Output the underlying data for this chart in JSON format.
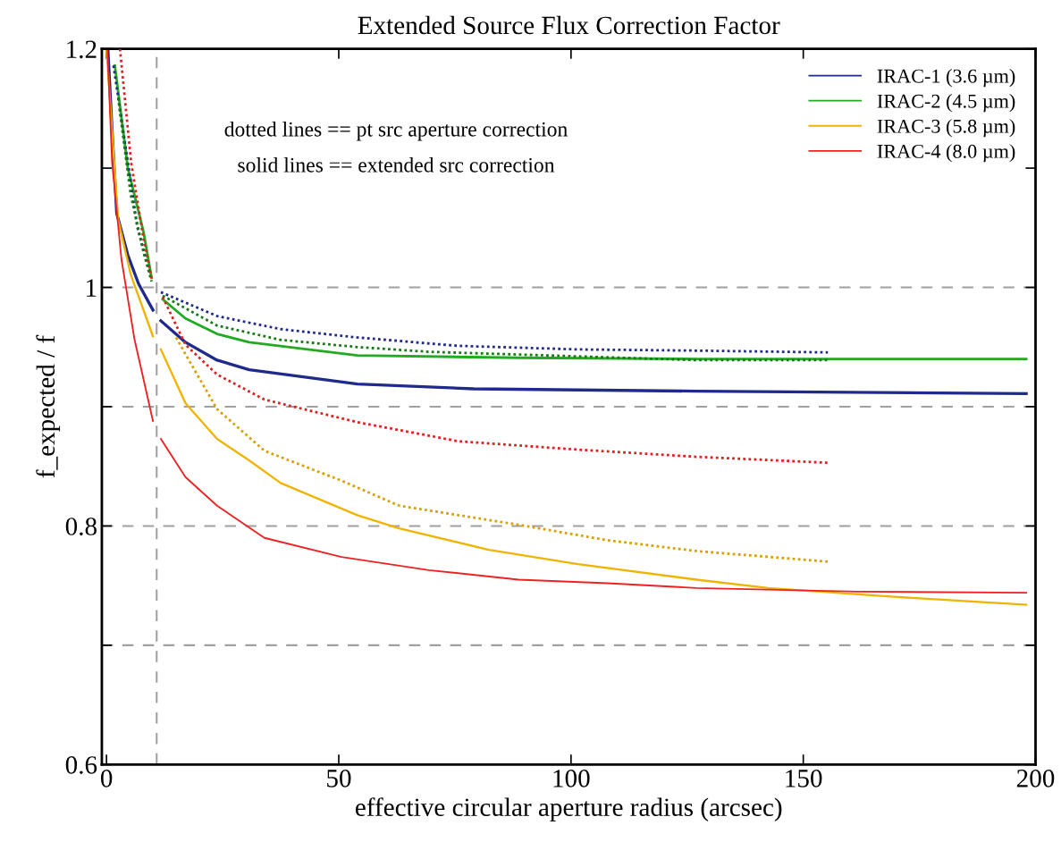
{
  "chart_data": {
    "type": "line",
    "title": "Extended Source Flux Correction Factor",
    "xlabel": "effective circular aperture radius (arcsec)",
    "ylabel": "f_expected / f",
    "annotations": [
      "dotted lines == pt src aperture correction",
      "solid lines == extended src correction"
    ],
    "xlim": [
      -1,
      200
    ],
    "xticks": [
      0,
      50,
      100,
      150,
      200
    ],
    "ylim": [
      0.6,
      1.2
    ],
    "yticks": [
      0.6,
      {
        "value": 0.7,
        "label": null
      },
      0.8,
      {
        "value": 0.9,
        "label": null
      },
      1,
      {
        "value": 1.1,
        "label": null
      },
      1.2
    ],
    "legend": "top right",
    "grid": false,
    "marker": "none",
    "ref_lines": [
      {
        "axis": "y",
        "value": 1.0,
        "color": "#a0a0a0",
        "line_style": "dashed"
      },
      {
        "axis": "y",
        "value": 0.9,
        "color": "#a0a0a0",
        "line_style": "dashed"
      },
      {
        "axis": "y",
        "value": 0.8,
        "color": "#a0a0a0",
        "line_style": "dashed"
      },
      {
        "axis": "y",
        "value": 0.7,
        "color": "#a0a0a0",
        "line_style": "dashed"
      },
      {
        "axis": "x",
        "value": 10.8,
        "color": "#a0a0a0",
        "line_style": "dashed"
      }
    ],
    "series": [
      {
        "name": "IRAC-1 (3.6 µm)",
        "color": "#1f2a8a",
        "line_style": "solid",
        "x": [
          0.3,
          1.2,
          2.2,
          4.6,
          6.9,
          10,
          null,
          11.7,
          17,
          23.8,
          30.7,
          54,
          79,
          127,
          198
        ],
        "values": [
          1.2,
          1.132,
          1.062,
          1.027,
          1.003,
          0.981,
          null,
          0.972,
          0.954,
          0.939,
          0.931,
          0.919,
          0.915,
          0.913,
          0.911
        ]
      },
      {
        "name": "IRAC-2 (4.5 µm)",
        "color": "#22aa22",
        "line_style": "solid",
        "x": [
          1.8,
          4.6,
          8,
          9.7,
          null,
          12.1,
          17,
          23.8,
          30.7,
          54,
          88.7,
          127,
          198
        ],
        "values": [
          1.186,
          1.1,
          1.046,
          1.008,
          null,
          0.99,
          0.974,
          0.961,
          0.954,
          0.943,
          0.941,
          0.94,
          0.94
        ]
      },
      {
        "name": "IRAC-3 (5.8 µm)",
        "color": "#f0b400",
        "line_style": "solid",
        "x": [
          0,
          2.5,
          5.2,
          10,
          null,
          11.7,
          17,
          23.8,
          30.7,
          37.5,
          54,
          63,
          82.3,
          101.5,
          127,
          142.5,
          168,
          198
        ],
        "values": [
          1.2,
          1.057,
          1.011,
          0.959,
          null,
          0.948,
          0.903,
          0.873,
          0.855,
          0.836,
          0.809,
          0.798,
          0.78,
          0.768,
          0.755,
          0.748,
          0.741,
          0.734
        ]
      },
      {
        "name": "IRAC-4 (8.0 µm)",
        "color": "#ee2222",
        "line_style": "solid",
        "x": [
          0.2,
          1.2,
          3.2,
          6,
          10,
          null,
          11.7,
          17,
          23.8,
          34,
          50.6,
          69.4,
          88.7,
          107.9,
          127,
          161.7,
          198
        ],
        "values": [
          1.2,
          1.105,
          1.024,
          0.957,
          0.888,
          null,
          0.873,
          0.841,
          0.817,
          0.79,
          0.774,
          0.763,
          0.755,
          0.752,
          0.748,
          0.745,
          0.744
        ]
      },
      {
        "color": "#1f2a8a",
        "line_style": "dotted",
        "x": [
          1.5,
          4.6,
          6.6,
          9.4,
          null,
          11.7,
          23.8,
          37.5,
          54,
          75.8,
          101.5,
          127,
          155.3
        ],
        "values": [
          1.186,
          1.105,
          1.051,
          1.011,
          null,
          0.996,
          0.976,
          0.965,
          0.958,
          0.951,
          0.948,
          0.947,
          0.9455
        ]
      },
      {
        "color": "#137a13",
        "line_style": "dotted",
        "x": [
          2.5,
          5.2,
          8,
          9.7,
          null,
          12.1,
          23.8,
          37.5,
          54,
          69.4,
          95,
          127,
          155.3
        ],
        "values": [
          1.159,
          1.078,
          1.029,
          1.005,
          null,
          0.993,
          0.968,
          0.956,
          0.95,
          0.946,
          0.943,
          0.939,
          0.939
        ]
      },
      {
        "color": "#d9a000",
        "line_style": "dotted",
        "x": [
          15,
          17,
          23.8,
          34,
          50.6,
          63,
          88.7,
          107.9,
          127,
          155.3
        ],
        "values": [
          0.958,
          0.944,
          0.898,
          0.863,
          0.838,
          0.817,
          0.801,
          0.788,
          0.779,
          0.77
        ]
      },
      {
        "color": "#dd2020",
        "line_style": "dotted",
        "x": [
          2.9,
          5.3,
          8,
          9.7,
          null,
          12.1,
          17,
          23.8,
          34,
          54,
          75.8,
          101.5,
          127,
          155.3
        ],
        "values": [
          1.2,
          1.105,
          1.04,
          1.008,
          null,
          0.992,
          0.952,
          0.927,
          0.906,
          0.887,
          0.871,
          0.864,
          0.858,
          0.853
        ]
      }
    ]
  }
}
